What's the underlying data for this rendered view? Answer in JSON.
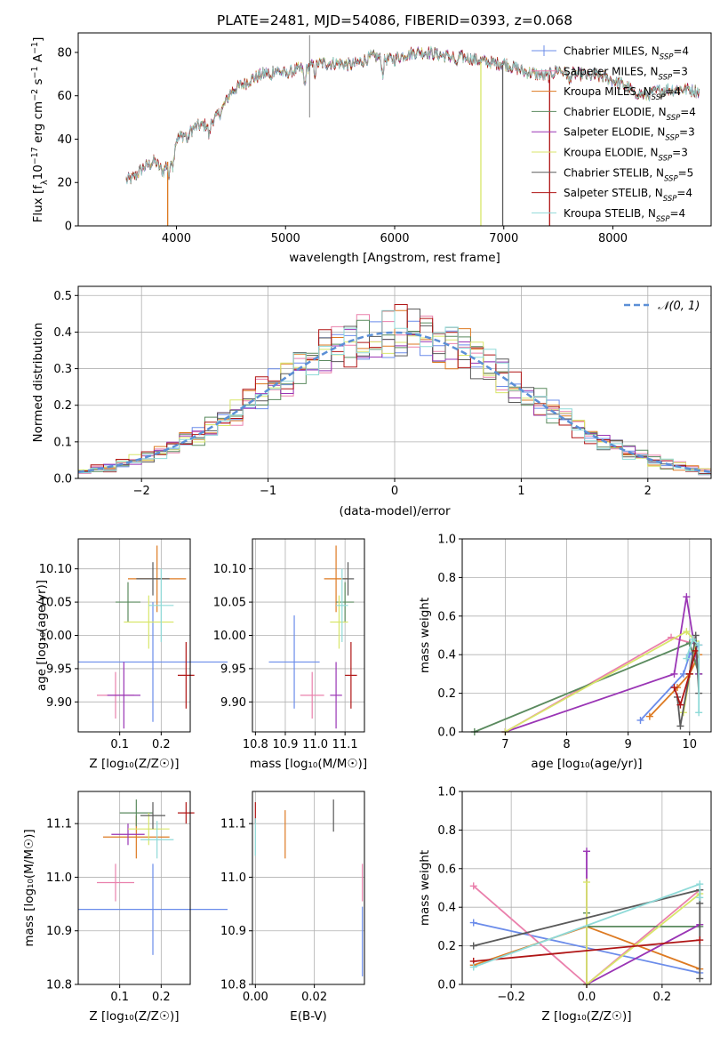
{
  "colors": {
    "Chabrier MILES": "#6b8cea",
    "Salpeter MILES": "#ea80ac",
    "Kroupa MILES": "#dd7a22",
    "Chabrier ELODIE": "#5a8a5e",
    "Salpeter ELODIE": "#9a35b5",
    "Kroupa ELODIE": "#d8e66a",
    "Chabrier STELIB": "#5a5a5a",
    "Salpeter STELIB": "#b01515",
    "Kroupa STELIB": "#8fdad8"
  },
  "chart_data": [
    {
      "id": "spectrum",
      "type": "line",
      "title": "PLATE=2481, MJD=54086, FIBERID=0393, z=0.068",
      "xlabel": "wavelength [Angstrom, rest frame]",
      "ylabel_parts": [
        "Flux [f",
        "λ",
        "10",
        "−17",
        " erg cm",
        "−2",
        " s",
        "−1",
        " A",
        "−1",
        "]"
      ],
      "xlim": [
        3100,
        8900
      ],
      "ylim": [
        0,
        89
      ],
      "xticks": [
        "4000",
        "5000",
        "6000",
        "7000",
        "8000"
      ],
      "yticks": [
        "0",
        "20",
        "40",
        "60",
        "80"
      ],
      "grid": false,
      "legend_placement": "top-right",
      "continuum": [
        [
          3540,
          21
        ],
        [
          3600,
          22
        ],
        [
          3700,
          27
        ],
        [
          3800,
          30
        ],
        [
          3880,
          25
        ],
        [
          3950,
          33
        ],
        [
          4000,
          40
        ],
        [
          4100,
          43
        ],
        [
          4200,
          46
        ],
        [
          4300,
          47
        ],
        [
          4400,
          52
        ],
        [
          4500,
          62
        ],
        [
          4600,
          65
        ],
        [
          4700,
          68
        ],
        [
          4800,
          70
        ],
        [
          4900,
          72
        ],
        [
          5000,
          70
        ],
        [
          5100,
          72
        ],
        [
          5200,
          73
        ],
        [
          5300,
          75
        ],
        [
          5400,
          75
        ],
        [
          5500,
          75
        ],
        [
          5600,
          74
        ],
        [
          5700,
          76
        ],
        [
          5800,
          78
        ],
        [
          5900,
          77
        ],
        [
          6000,
          77
        ],
        [
          6100,
          79
        ],
        [
          6200,
          80
        ],
        [
          6300,
          80
        ],
        [
          6400,
          79
        ],
        [
          6500,
          78
        ],
        [
          6600,
          78
        ],
        [
          6700,
          77
        ],
        [
          6800,
          76
        ],
        [
          6900,
          75
        ],
        [
          7000,
          75
        ],
        [
          7100,
          73
        ],
        [
          7200,
          71
        ],
        [
          7300,
          70
        ],
        [
          7400,
          69
        ],
        [
          7500,
          72
        ],
        [
          7600,
          70
        ],
        [
          7700,
          70
        ],
        [
          7800,
          69
        ],
        [
          7900,
          69
        ],
        [
          8000,
          67
        ],
        [
          8100,
          65
        ],
        [
          8200,
          62
        ],
        [
          8300,
          60
        ],
        [
          8400,
          62
        ],
        [
          8500,
          63
        ],
        [
          8600,
          63
        ],
        [
          8700,
          63
        ],
        [
          8790,
          62
        ]
      ],
      "series": [
        {
          "name": "Chabrier MILES",
          "nssp": "4"
        },
        {
          "name": "Salpeter MILES",
          "nssp": "3"
        },
        {
          "name": "Kroupa MILES",
          "nssp": "4"
        },
        {
          "name": "Chabrier ELODIE",
          "nssp": "4"
        },
        {
          "name": "Salpeter ELODIE",
          "nssp": "3"
        },
        {
          "name": "Kroupa ELODIE",
          "nssp": "3"
        },
        {
          "name": "Chabrier STELIB",
          "nssp": "5"
        },
        {
          "name": "Salpeter STELIB",
          "nssp": "4"
        },
        {
          "name": "Kroupa STELIB",
          "nssp": "4"
        }
      ],
      "drops": [
        {
          "series": "Kroupa MILES",
          "x": 3920
        },
        {
          "series": "Kroupa ELODIE",
          "x": 6790
        },
        {
          "series": "Chabrier STELIB",
          "x": 6990
        },
        {
          "series": "Salpeter STELIB",
          "x": 7420
        }
      ]
    },
    {
      "id": "residuals",
      "type": "histogram",
      "xlabel": "(data-model)/error",
      "ylabel": "Normed distribution",
      "xlim": [
        -2.5,
        2.5
      ],
      "ylim": [
        0,
        0.525
      ],
      "xticks": [
        "−2",
        "−1",
        "0",
        "1",
        "2"
      ],
      "yticks": [
        "0.0",
        "0.1",
        "0.2",
        "0.3",
        "0.4",
        "0.5"
      ],
      "grid": true,
      "bins": 50,
      "curve_label": "𝒩(0, 1)",
      "legend_placement": "top-right"
    },
    {
      "id": "age_vs_Z",
      "type": "errorbar",
      "xlabel": "Z [log₁₀(Z/Z☉)]",
      "ylabel": "age  [log₁₀(age/yr)]",
      "xlim": [
        0.0,
        0.27
      ],
      "ylim": [
        9.855,
        10.145
      ],
      "xticks": [
        {
          "v": 0.1,
          "t": "0.1"
        },
        {
          "v": 0.2,
          "t": "0.2"
        }
      ],
      "yticks": [
        {
          "v": 9.9,
          "t": "9.90"
        },
        {
          "v": 9.95,
          "t": "9.95"
        },
        {
          "v": 10.0,
          "t": "10.00"
        },
        {
          "v": 10.05,
          "t": "10.05"
        },
        {
          "v": 10.1,
          "t": "10.10"
        }
      ],
      "points": [
        {
          "s": "Chabrier MILES",
          "x": 0.18,
          "xe": 0.18,
          "y": 9.96,
          "ye": 0.09
        },
        {
          "s": "Salpeter MILES",
          "x": 0.09,
          "xe": 0.045,
          "y": 9.91,
          "ye": 0.035
        },
        {
          "s": "Kroupa MILES",
          "x": 0.19,
          "xe": 0.07,
          "y": 10.085,
          "ye": 0.05
        },
        {
          "s": "Chabrier ELODIE",
          "x": 0.12,
          "xe": 0.03,
          "y": 10.05,
          "ye": 0.03
        },
        {
          "s": "Salpeter ELODIE",
          "x": 0.11,
          "xe": 0.04,
          "y": 9.91,
          "ye": 0.05
        },
        {
          "s": "Kroupa ELODIE",
          "x": 0.17,
          "xe": 0.06,
          "y": 10.02,
          "ye": 0.04
        },
        {
          "s": "Chabrier STELIB",
          "x": 0.18,
          "xe": 0.04,
          "y": 10.085,
          "ye": 0.025
        },
        {
          "s": "Salpeter STELIB",
          "x": 0.26,
          "xe": 0.02,
          "y": 9.94,
          "ye": 0.05
        },
        {
          "s": "Kroupa STELIB",
          "x": 0.2,
          "xe": 0.03,
          "y": 10.045,
          "ye": 0.055
        }
      ]
    },
    {
      "id": "age_vs_mass",
      "type": "errorbar",
      "xlabel": "mass [log₁₀(M/M☉)]",
      "ylabel": "",
      "xlim": [
        10.79,
        11.165
      ],
      "ylim": [
        9.855,
        10.145
      ],
      "xticks": [
        {
          "v": 10.8,
          "t": "10.8"
        },
        {
          "v": 10.9,
          "t": "10.9"
        },
        {
          "v": 11.0,
          "t": "11.0"
        },
        {
          "v": 11.1,
          "t": "11.1"
        }
      ],
      "yticks": [
        {
          "v": 9.9,
          "t": "9.90"
        },
        {
          "v": 9.95,
          "t": "9.95"
        },
        {
          "v": 10.0,
          "t": "10.00"
        },
        {
          "v": 10.05,
          "t": "10.05"
        },
        {
          "v": 10.1,
          "t": "10.10"
        }
      ],
      "points": [
        {
          "s": "Chabrier MILES",
          "x": 10.93,
          "xe": 0.085,
          "y": 9.96,
          "ye": 0.07
        },
        {
          "s": "Salpeter MILES",
          "x": 10.99,
          "xe": 0.04,
          "y": 9.91,
          "ye": 0.035
        },
        {
          "s": "Kroupa MILES",
          "x": 11.07,
          "xe": 0.04,
          "y": 10.085,
          "ye": 0.05
        },
        {
          "s": "Chabrier ELODIE",
          "x": 11.1,
          "xe": 0.03,
          "y": 10.05,
          "ye": 0.03
        },
        {
          "s": "Salpeter ELODIE",
          "x": 11.07,
          "xe": 0.02,
          "y": 9.91,
          "ye": 0.05
        },
        {
          "s": "Kroupa ELODIE",
          "x": 11.08,
          "xe": 0.03,
          "y": 10.02,
          "ye": 0.04
        },
        {
          "s": "Chabrier STELIB",
          "x": 11.11,
          "xe": 0.02,
          "y": 10.085,
          "ye": 0.025
        },
        {
          "s": "Salpeter STELIB",
          "x": 11.12,
          "xe": 0.02,
          "y": 9.94,
          "ye": 0.05
        },
        {
          "s": "Kroupa STELIB",
          "x": 11.09,
          "xe": 0.02,
          "y": 10.045,
          "ye": 0.055
        }
      ]
    },
    {
      "id": "mass_weight_vs_age",
      "type": "line",
      "xlabel": "age  [log₁₀(age/yr)]",
      "ylabel": "mass weight",
      "xlim": [
        6.3,
        10.35
      ],
      "ylim": [
        0,
        1
      ],
      "xticks": [
        {
          "v": 7,
          "t": "7"
        },
        {
          "v": 8,
          "t": "8"
        },
        {
          "v": 9,
          "t": "9"
        },
        {
          "v": 10,
          "t": "10"
        }
      ],
      "yticks": [
        {
          "v": 0,
          "t": "0.0"
        },
        {
          "v": 0.2,
          "t": "0.2"
        },
        {
          "v": 0.4,
          "t": "0.4"
        },
        {
          "v": 0.6,
          "t": "0.6"
        },
        {
          "v": 0.8,
          "t": "0.8"
        },
        {
          "v": 1.0,
          "t": "1.0"
        }
      ],
      "series": [
        {
          "s": "Chabrier MILES",
          "x": [
            9.2,
            9.9,
            10.0,
            10.15
          ],
          "y": [
            0.06,
            0.3,
            0.4,
            0.45
          ]
        },
        {
          "s": "Salpeter MILES",
          "x": [
            7.0,
            9.7,
            10.15
          ],
          "y": [
            0.0,
            0.49,
            0.45
          ]
        },
        {
          "s": "Kroupa MILES",
          "x": [
            9.35,
            9.8,
            10.0,
            10.15
          ],
          "y": [
            0.08,
            0.23,
            0.3,
            0.4
          ]
        },
        {
          "s": "Chabrier ELODIE",
          "x": [
            6.5,
            10.0,
            10.15
          ],
          "y": [
            0.0,
            0.46,
            0.3
          ]
        },
        {
          "s": "Salpeter ELODIE",
          "x": [
            7.0,
            9.75,
            9.95,
            10.15
          ],
          "y": [
            0.0,
            0.3,
            0.7,
            0.3
          ]
        },
        {
          "s": "Kroupa ELODIE",
          "x": [
            7.0,
            9.95,
            10.1,
            9.9
          ],
          "y": [
            0.0,
            0.52,
            0.47,
            0.1
          ]
        },
        {
          "s": "Chabrier STELIB",
          "x": [
            9.8,
            9.85,
            10.0,
            10.1,
            10.15
          ],
          "y": [
            0.18,
            0.03,
            0.3,
            0.5,
            0.2
          ]
        },
        {
          "s": "Salpeter STELIB",
          "x": [
            9.75,
            9.85,
            10.0,
            10.1
          ],
          "y": [
            0.23,
            0.14,
            0.3,
            0.42
          ]
        },
        {
          "s": "Kroupa STELIB",
          "x": [
            9.95,
            10.05,
            10.15,
            10.15
          ],
          "y": [
            0.38,
            0.48,
            0.45,
            0.1
          ]
        }
      ]
    },
    {
      "id": "mass_vs_Z",
      "type": "errorbar",
      "xlabel": "Z [log₁₀(Z/Z☉)]",
      "ylabel": "mass [log₁₀(M/M☉)]",
      "xlim": [
        0.0,
        0.27
      ],
      "ylim": [
        10.8,
        11.16
      ],
      "xticks": [
        {
          "v": 0.1,
          "t": "0.1"
        },
        {
          "v": 0.2,
          "t": "0.2"
        }
      ],
      "yticks": [
        {
          "v": 10.8,
          "t": "10.8"
        },
        {
          "v": 10.9,
          "t": "10.9"
        },
        {
          "v": 11.0,
          "t": "11.0"
        },
        {
          "v": 11.1,
          "t": "11.1"
        }
      ],
      "points": [
        {
          "s": "Chabrier MILES",
          "x": 0.18,
          "xe": 0.18,
          "y": 10.94,
          "ye": 0.085
        },
        {
          "s": "Salpeter MILES",
          "x": 0.09,
          "xe": 0.045,
          "y": 10.99,
          "ye": 0.035
        },
        {
          "s": "Kroupa MILES",
          "x": 0.14,
          "xe": 0.08,
          "y": 11.075,
          "ye": 0.04
        },
        {
          "s": "Chabrier ELODIE",
          "x": 0.14,
          "xe": 0.04,
          "y": 11.12,
          "ye": 0.025
        },
        {
          "s": "Salpeter ELODIE",
          "x": 0.12,
          "xe": 0.04,
          "y": 11.08,
          "ye": 0.02
        },
        {
          "s": "Kroupa ELODIE",
          "x": 0.17,
          "xe": 0.05,
          "y": 11.09,
          "ye": 0.03
        },
        {
          "s": "Chabrier STELIB",
          "x": 0.18,
          "xe": 0.03,
          "y": 11.115,
          "ye": 0.025
        },
        {
          "s": "Salpeter STELIB",
          "x": 0.26,
          "xe": 0.02,
          "y": 11.12,
          "ye": 0.02
        },
        {
          "s": "Kroupa STELIB",
          "x": 0.19,
          "xe": 0.04,
          "y": 11.07,
          "ye": 0.035
        }
      ]
    },
    {
      "id": "mass_vs_ebv",
      "type": "errorbar",
      "xlabel": "E(B-V)",
      "ylabel": "",
      "xlim": [
        -0.001,
        0.037
      ],
      "ylim": [
        10.8,
        11.16
      ],
      "xticks": [
        {
          "v": 0.0,
          "t": "0.00"
        },
        {
          "v": 0.02,
          "t": "0.02"
        }
      ],
      "yticks": [
        {
          "v": 10.8,
          "t": "10.8"
        },
        {
          "v": 10.9,
          "t": "10.9"
        },
        {
          "v": 11.0,
          "t": "11.0"
        },
        {
          "v": 11.1,
          "t": "11.1"
        }
      ],
      "points": [
        {
          "s": "Chabrier MILES",
          "x": 0.0363,
          "xe": 0,
          "y": 10.88,
          "ye": 0.065
        },
        {
          "s": "Salpeter MILES",
          "x": 0.0363,
          "xe": 0,
          "y": 10.99,
          "ye": 0.035
        },
        {
          "s": "Kroupa MILES",
          "x": 0.0101,
          "xe": 0,
          "y": 11.08,
          "ye": 0.045
        },
        {
          "s": "Chabrier STELIB",
          "x": 0.0265,
          "xe": 0,
          "y": 11.115,
          "ye": 0.03
        },
        {
          "s": "Salpeter STELIB",
          "x": 0.0,
          "xe": 0,
          "y": 11.12,
          "ye": 0.02
        },
        {
          "s": "Kroupa STELIB",
          "x": 0.0,
          "xe": 0,
          "y": 11.075,
          "ye": 0.035
        }
      ]
    },
    {
      "id": "mass_weight_vs_Z",
      "type": "line",
      "xlabel": "Z [log₁₀(Z/Z☉)]",
      "ylabel": "mass weight",
      "xlim": [
        -0.33,
        0.33
      ],
      "ylim": [
        0,
        1
      ],
      "xticks": [
        {
          "v": -0.2,
          "t": "−0.2"
        },
        {
          "v": 0.0,
          "t": "0.0"
        },
        {
          "v": 0.2,
          "t": "0.2"
        }
      ],
      "yticks": [
        {
          "v": 0,
          "t": "0.0"
        },
        {
          "v": 0.2,
          "t": "0.2"
        },
        {
          "v": 0.4,
          "t": "0.4"
        },
        {
          "v": 0.6,
          "t": "0.6"
        },
        {
          "v": 0.8,
          "t": "0.8"
        },
        {
          "v": 1.0,
          "t": "1.0"
        }
      ],
      "series": [
        {
          "s": "Chabrier MILES",
          "x": [
            -0.3,
            0.3
          ],
          "y": [
            0.32,
            0.06
          ]
        },
        {
          "s": "Salpeter MILES",
          "x": [
            -0.3,
            0.0,
            0.3
          ],
          "y": [
            0.51,
            0.0,
            0.49
          ]
        },
        {
          "s": "Kroupa MILES",
          "x": [
            -0.3,
            0.0,
            0.3
          ],
          "y": [
            0.1,
            0.3,
            0.08
          ]
        },
        {
          "s": "Chabrier ELODIE",
          "x": [
            0.0,
            0.0,
            0.3
          ],
          "y": [
            0.37,
            0.3,
            0.3
          ]
        },
        {
          "s": "Salpeter ELODIE",
          "x": [
            0.0,
            0.0,
            0.3
          ],
          "y": [
            0.69,
            0.0,
            0.31
          ]
        },
        {
          "s": "Kroupa ELODIE",
          "x": [
            0.0,
            0.0,
            0.3
          ],
          "y": [
            0.53,
            0.0,
            0.47
          ]
        },
        {
          "s": "Chabrier STELIB",
          "x": [
            -0.3,
            0.3,
            0.3,
            0.3
          ],
          "y": [
            0.2,
            0.49,
            0.03,
            0.42
          ]
        },
        {
          "s": "Salpeter STELIB",
          "x": [
            -0.3,
            0.3
          ],
          "y": [
            0.12,
            0.23
          ]
        },
        {
          "s": "Kroupa STELIB",
          "x": [
            -0.3,
            0.3,
            0.3
          ],
          "y": [
            0.09,
            0.52,
            0.45
          ]
        }
      ]
    }
  ]
}
